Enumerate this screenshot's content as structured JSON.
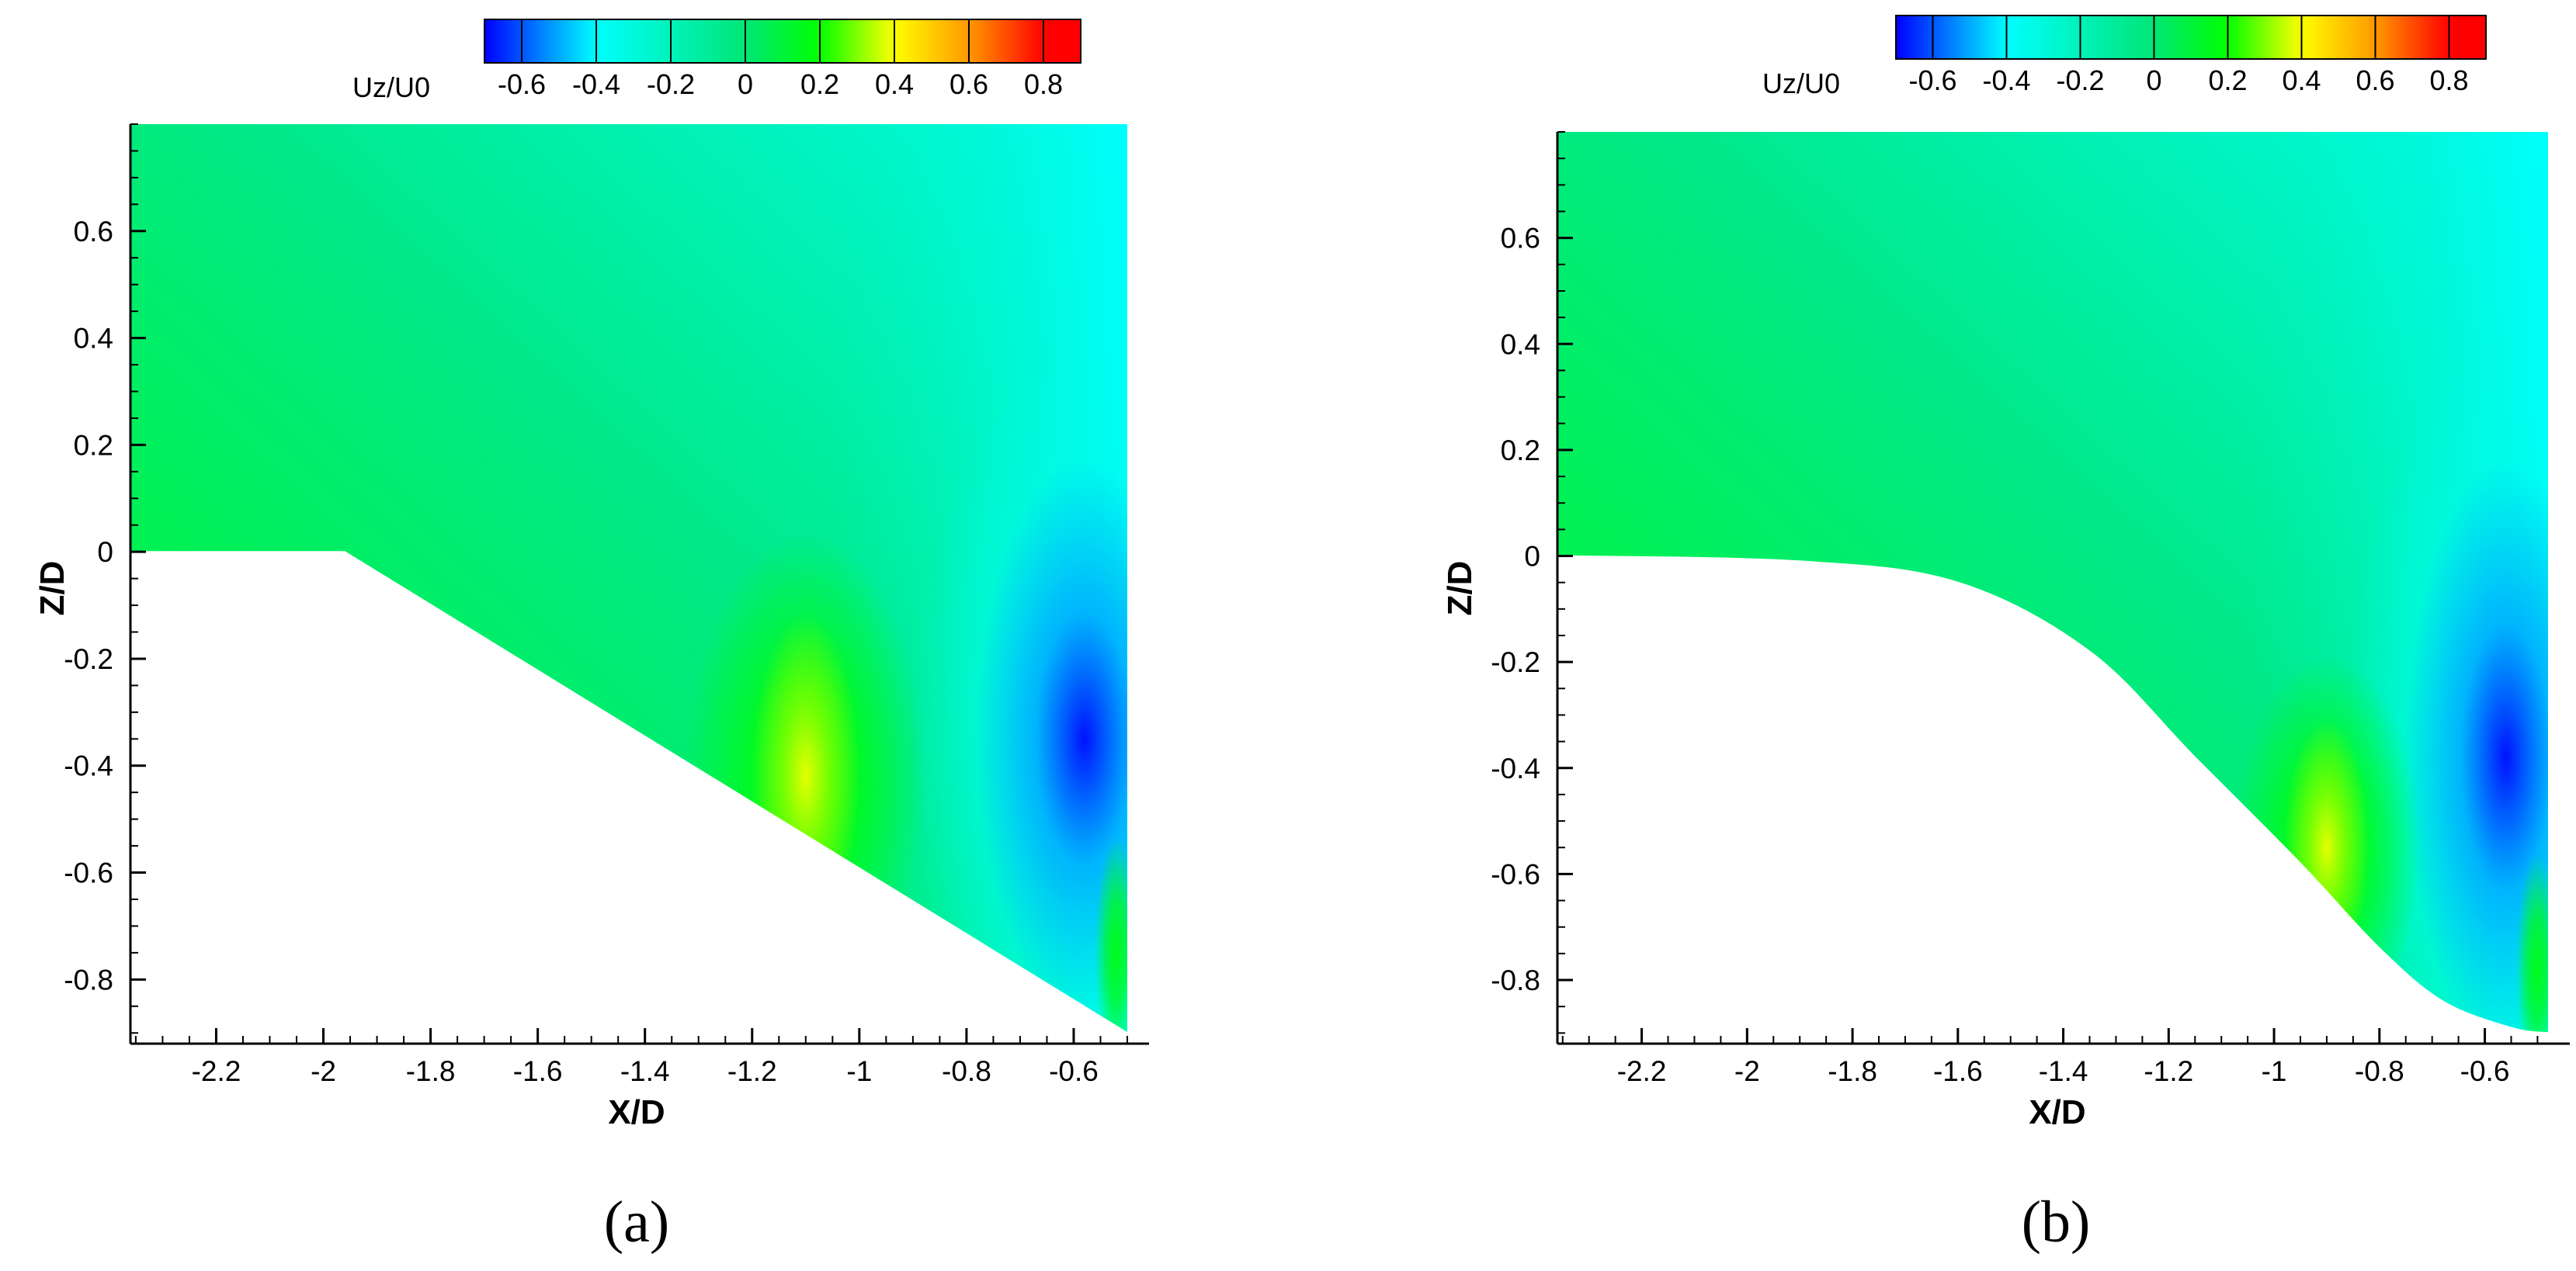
{
  "figure": {
    "panel_labels": [
      "(a)",
      "(b)"
    ]
  },
  "colormap": [
    [
      -0.7,
      "#0000ff"
    ],
    [
      -0.4,
      "#00ffff"
    ],
    [
      0.0,
      "#00e676"
    ],
    [
      0.2,
      "#00ff00"
    ],
    [
      0.4,
      "#ffff00"
    ],
    [
      0.6,
      "#ff9900"
    ],
    [
      0.8,
      "#ff0000"
    ]
  ],
  "chart_data": [
    {
      "type": "heatmap",
      "panel": "(a)",
      "title": "",
      "xlabel": "X/D",
      "ylabel": "Z/D",
      "xlim": [
        -2.36,
        -0.5
      ],
      "ylim": [
        -0.92,
        0.8
      ],
      "xticks": [
        -2.2,
        -2,
        -1.8,
        -1.6,
        -1.4,
        -1.2,
        -1,
        -0.8,
        -0.6
      ],
      "xtick_labels": [
        "-2.2",
        "-2",
        "-1.8",
        "-1.6",
        "-1.4",
        "-1.2",
        "-1",
        "-0.8",
        "-0.6"
      ],
      "yticks": [
        -0.8,
        -0.6,
        -0.4,
        -0.2,
        0,
        0.2,
        0.4,
        0.6
      ],
      "ytick_labels": [
        "-0.8",
        "-0.6",
        "-0.4",
        "-0.2",
        "0",
        "0.2",
        "0.4",
        "0.6"
      ],
      "grid": false,
      "colorbar": {
        "title": "Uz/U0",
        "placement": "top",
        "levels": [
          -0.7,
          -0.6,
          -0.5,
          -0.4,
          -0.3,
          -0.2,
          -0.1,
          0,
          0.1,
          0.2,
          0.3,
          0.4,
          0.5,
          0.6,
          0.7,
          0.8,
          0.9
        ],
        "tick_values": [
          -0.6,
          -0.4,
          -0.2,
          0,
          0.2,
          0.4,
          0.6,
          0.8
        ],
        "tick_labels": [
          "-0.6",
          "-0.4",
          "-0.2",
          "0",
          "0.2",
          "0.4",
          "0.6",
          "0.8"
        ]
      },
      "lower_boundary": {
        "shape": "linear ramp",
        "points": [
          [
            -2.36,
            0
          ],
          [
            -1.96,
            0
          ],
          [
            -0.5,
            -0.9
          ]
        ]
      },
      "field_features": [
        {
          "name": "background",
          "x": null,
          "z": null,
          "value": 0.1
        },
        {
          "name": "downflow core",
          "x": -0.58,
          "z": -0.35,
          "value": -0.68
        },
        {
          "name": "upflow pocket",
          "x": -1.1,
          "z": -0.42,
          "value": 0.38
        },
        {
          "name": "wall jet",
          "x": -0.52,
          "z": -0.75,
          "value": 0.2
        }
      ]
    },
    {
      "type": "heatmap",
      "panel": "(b)",
      "title": "",
      "xlabel": "X/D",
      "ylabel": "Z/D",
      "xlim": [
        -2.36,
        -0.48
      ],
      "ylim": [
        -0.92,
        0.8
      ],
      "xticks": [
        -2.2,
        -2,
        -1.8,
        -1.6,
        -1.4,
        -1.2,
        -1,
        -0.8,
        -0.6
      ],
      "xtick_labels": [
        "-2.2",
        "-2",
        "-1.8",
        "-1.6",
        "-1.4",
        "-1.2",
        "-1",
        "-0.8",
        "-0.6"
      ],
      "yticks": [
        -0.8,
        -0.6,
        -0.4,
        -0.2,
        0,
        0.2,
        0.4,
        0.6
      ],
      "ytick_labels": [
        "-0.8",
        "-0.6",
        "-0.4",
        "-0.2",
        "0",
        "0.2",
        "0.4",
        "0.6"
      ],
      "grid": false,
      "colorbar": {
        "title": "Uz/U0",
        "placement": "top",
        "levels": [
          -0.7,
          -0.6,
          -0.5,
          -0.4,
          -0.3,
          -0.2,
          -0.1,
          0,
          0.1,
          0.2,
          0.3,
          0.4,
          0.5,
          0.6,
          0.7,
          0.8,
          0.9
        ],
        "tick_values": [
          -0.6,
          -0.4,
          -0.2,
          0,
          0.2,
          0.4,
          0.6,
          0.8
        ],
        "tick_labels": [
          "-0.6",
          "-0.4",
          "-0.2",
          "0",
          "0.2",
          "0.4",
          "0.6",
          "0.8"
        ]
      },
      "lower_boundary": {
        "shape": "curved",
        "points": [
          [
            -2.36,
            0
          ],
          [
            -1.9,
            -0.01
          ],
          [
            -1.6,
            -0.05
          ],
          [
            -1.35,
            -0.18
          ],
          [
            -1.15,
            -0.38
          ],
          [
            -0.95,
            -0.58
          ],
          [
            -0.8,
            -0.74
          ],
          [
            -0.68,
            -0.84
          ],
          [
            -0.55,
            -0.89
          ],
          [
            -0.48,
            -0.9
          ]
        ]
      },
      "field_features": [
        {
          "name": "background",
          "x": null,
          "z": null,
          "value": 0.1
        },
        {
          "name": "downflow core",
          "x": -0.56,
          "z": -0.38,
          "value": -0.68
        },
        {
          "name": "upflow pocket",
          "x": -0.9,
          "z": -0.55,
          "value": 0.38
        },
        {
          "name": "wall jet",
          "x": -0.5,
          "z": -0.78,
          "value": 0.2
        }
      ]
    }
  ]
}
